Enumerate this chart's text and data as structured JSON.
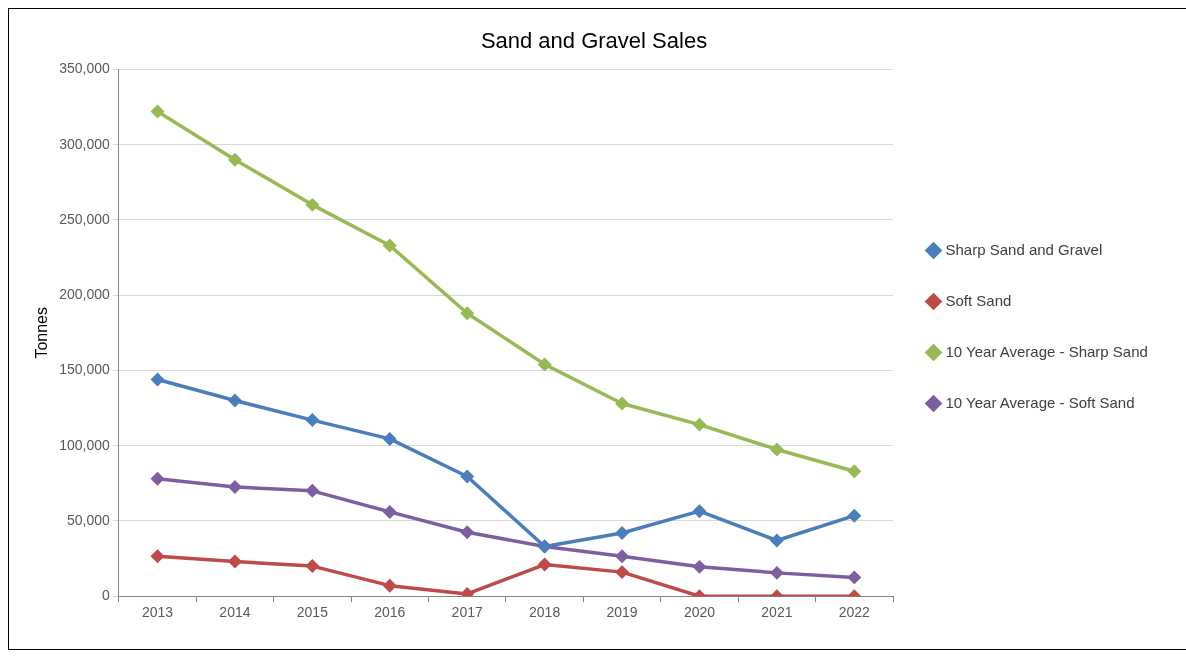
{
  "chart_data": {
    "type": "line",
    "title": "Sand and Gravel Sales",
    "ylabel": "Tonnes",
    "categories": [
      "2013",
      "2014",
      "2015",
      "2016",
      "2017",
      "2018",
      "2019",
      "2020",
      "2021",
      "2022"
    ],
    "series": [
      {
        "name": "Sharp Sand and Gravel",
        "color": "#4a7ebb",
        "values": [
          144000,
          130000,
          117000,
          104500,
          79500,
          33000,
          42000,
          56500,
          37000,
          53500
        ]
      },
      {
        "name": "Soft Sand",
        "color": "#be4b48",
        "values": [
          26500,
          23000,
          20000,
          7000,
          1500,
          21000,
          16000,
          0,
          0,
          0
        ]
      },
      {
        "name": "10 Year Average - Sharp Sand",
        "color": "#98b954",
        "values": [
          322000,
          290000,
          260000,
          233000,
          188000,
          154000,
          128000,
          114000,
          97500,
          83000
        ]
      },
      {
        "name": "10 Year Average - Soft Sand",
        "color": "#7d5fa0",
        "values": [
          78000,
          72500,
          70000,
          56000,
          42500,
          33000,
          26500,
          19500,
          15500,
          12500
        ]
      }
    ],
    "ylim": [
      0,
      350000
    ],
    "yticks": [
      0,
      {
        "value": 50000,
        "label": "50,000"
      },
      {
        "value": 100000,
        "label": "100,000"
      },
      {
        "value": 150000,
        "label": "150,000"
      },
      {
        "value": 200000,
        "label": "200,000"
      },
      {
        "value": 250000,
        "label": "250,000"
      },
      {
        "value": 300000,
        "label": "300,000"
      },
      {
        "value": 350000,
        "label": "350,000"
      }
    ],
    "grid": "y",
    "legend": "right",
    "marker": "diamond",
    "line_style": "solid"
  }
}
